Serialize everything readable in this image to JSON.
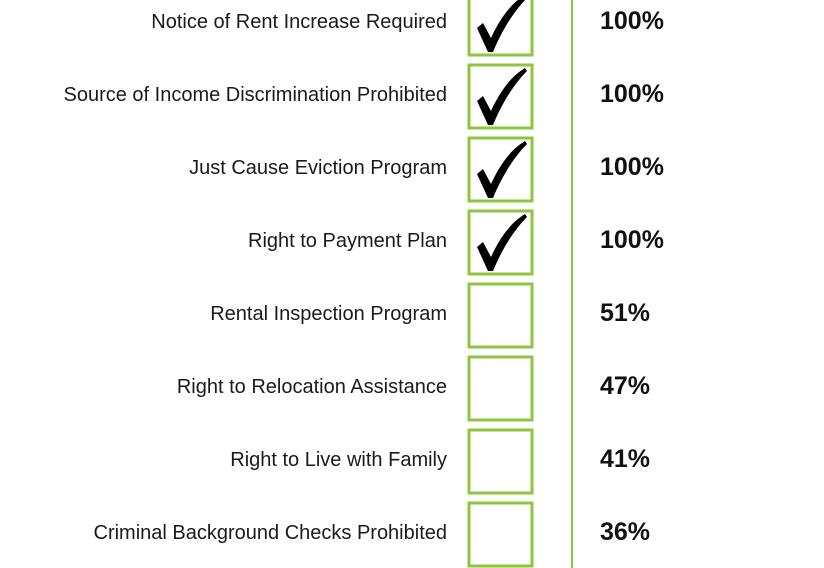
{
  "rows": [
    {
      "label": "Notice of Rent Increase Required",
      "checked": true,
      "percent": "100%"
    },
    {
      "label": "Source of Income Discrimination Prohibited",
      "checked": true,
      "percent": "100%"
    },
    {
      "label": "Just Cause Eviction Program",
      "checked": true,
      "percent": "100%"
    },
    {
      "label": "Right to Payment Plan",
      "checked": true,
      "percent": "100%"
    },
    {
      "label": "Rental Inspection Program",
      "checked": false,
      "percent": "51%"
    },
    {
      "label": "Right to Relocation Assistance",
      "checked": false,
      "percent": "47%"
    },
    {
      "label": "Right to Live with Family",
      "checked": false,
      "percent": "41%"
    },
    {
      "label": "Criminal Background Checks Prohibited",
      "checked": false,
      "percent": "36%"
    }
  ]
}
